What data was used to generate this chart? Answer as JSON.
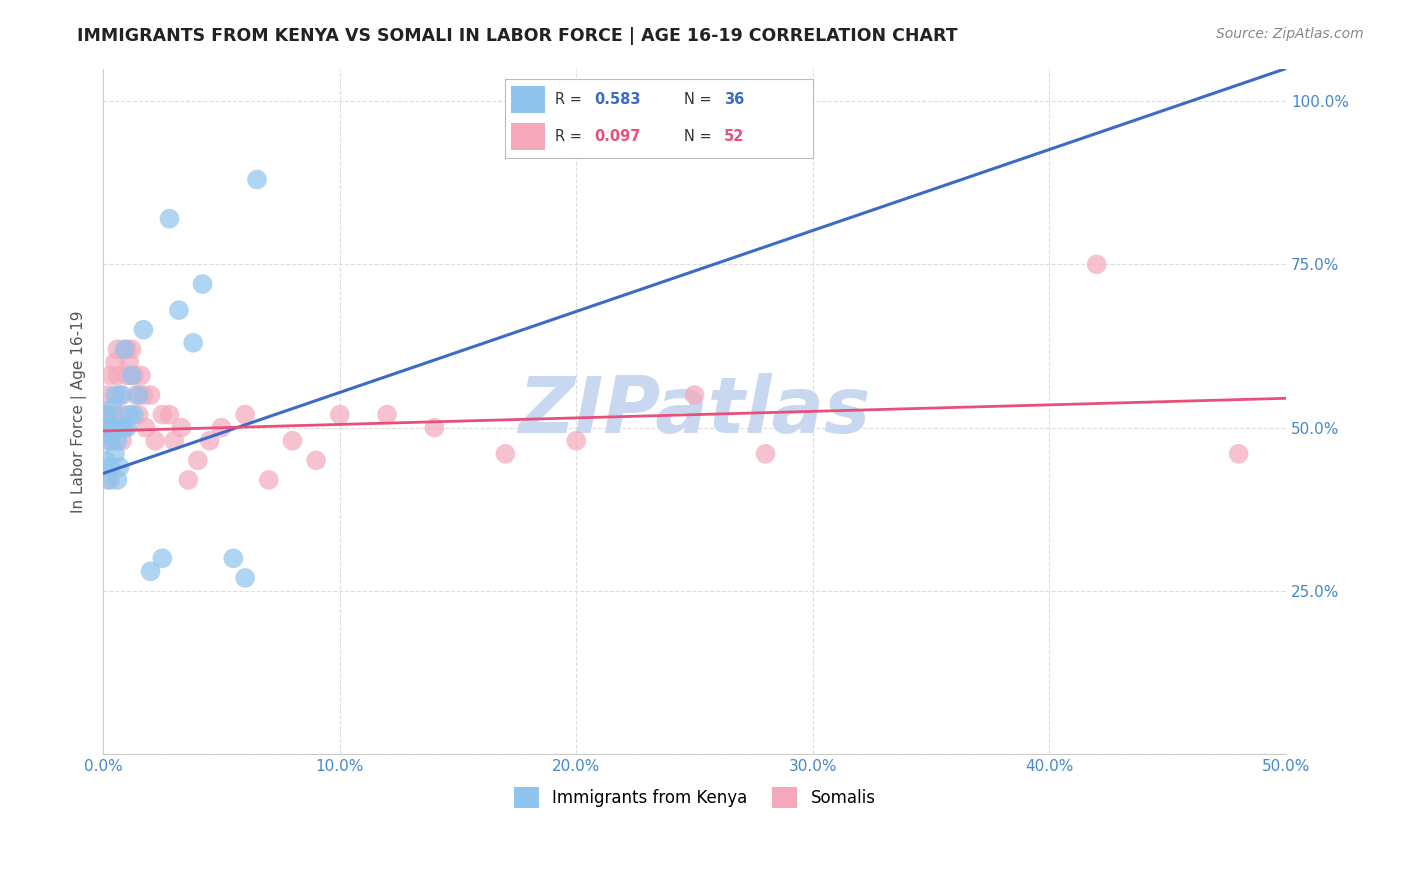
{
  "title": "IMMIGRANTS FROM KENYA VS SOMALI IN LABOR FORCE | AGE 16-19 CORRELATION CHART",
  "source": "Source: ZipAtlas.com",
  "ylabel": "In Labor Force | Age 16-19",
  "xlim": [
    0.0,
    0.5
  ],
  "ylim": [
    0.0,
    1.05
  ],
  "xticks": [
    0.0,
    0.1,
    0.2,
    0.3,
    0.4,
    0.5
  ],
  "xticklabels": [
    "0.0%",
    "10.0%",
    "20.0%",
    "30.0%",
    "40.0%",
    "50.0%"
  ],
  "yticks": [
    0.0,
    0.25,
    0.5,
    0.75,
    1.0
  ],
  "yticklabels_right": [
    "",
    "25.0%",
    "50.0%",
    "75.0%",
    "100.0%"
  ],
  "kenya_color": "#8EC4EE",
  "somali_color": "#F5A8BC",
  "kenya_line_color": "#3A6BC8",
  "somali_line_color": "#E8507A",
  "kenya_r": 0.583,
  "kenya_n": 36,
  "somali_r": 0.097,
  "somali_n": 52,
  "watermark": "ZIPatlas",
  "watermark_color": "#C8D8F0",
  "legend_label_kenya": "Immigrants from Kenya",
  "legend_label_somali": "Somalis",
  "kenya_x": [
    0.001,
    0.001,
    0.002,
    0.002,
    0.002,
    0.003,
    0.003,
    0.003,
    0.004,
    0.004,
    0.005,
    0.005,
    0.005,
    0.006,
    0.006,
    0.006,
    0.007,
    0.007,
    0.008,
    0.008,
    0.009,
    0.01,
    0.011,
    0.012,
    0.013,
    0.015,
    0.017,
    0.02,
    0.025,
    0.028,
    0.032,
    0.038,
    0.042,
    0.055,
    0.06,
    0.065
  ],
  "kenya_y": [
    0.49,
    0.45,
    0.5,
    0.42,
    0.52,
    0.48,
    0.5,
    0.44,
    0.5,
    0.53,
    0.46,
    0.5,
    0.55,
    0.48,
    0.5,
    0.42,
    0.5,
    0.44,
    0.5,
    0.55,
    0.62,
    0.5,
    0.52,
    0.58,
    0.52,
    0.55,
    0.65,
    0.28,
    0.3,
    0.82,
    0.68,
    0.63,
    0.72,
    0.3,
    0.27,
    0.88
  ],
  "somali_x": [
    0.001,
    0.001,
    0.002,
    0.002,
    0.002,
    0.003,
    0.003,
    0.003,
    0.004,
    0.004,
    0.005,
    0.005,
    0.006,
    0.006,
    0.007,
    0.007,
    0.008,
    0.008,
    0.009,
    0.01,
    0.01,
    0.011,
    0.012,
    0.013,
    0.014,
    0.015,
    0.016,
    0.017,
    0.018,
    0.02,
    0.022,
    0.025,
    0.028,
    0.03,
    0.033,
    0.036,
    0.04,
    0.045,
    0.05,
    0.06,
    0.07,
    0.08,
    0.09,
    0.1,
    0.12,
    0.14,
    0.17,
    0.2,
    0.25,
    0.28,
    0.42,
    0.48
  ],
  "somali_y": [
    0.5,
    0.52,
    0.48,
    0.55,
    0.5,
    0.52,
    0.58,
    0.42,
    0.5,
    0.48,
    0.52,
    0.6,
    0.62,
    0.58,
    0.5,
    0.55,
    0.48,
    0.52,
    0.5,
    0.58,
    0.62,
    0.6,
    0.62,
    0.58,
    0.55,
    0.52,
    0.58,
    0.55,
    0.5,
    0.55,
    0.48,
    0.52,
    0.52,
    0.48,
    0.5,
    0.42,
    0.45,
    0.48,
    0.5,
    0.52,
    0.42,
    0.48,
    0.45,
    0.52,
    0.52,
    0.5,
    0.46,
    0.48,
    0.55,
    0.46,
    0.75,
    0.46
  ],
  "kenya_line": [
    [
      0.0,
      0.43
    ],
    [
      0.5,
      1.05
    ]
  ],
  "somali_line": [
    [
      0.0,
      0.495
    ],
    [
      0.5,
      0.545
    ]
  ],
  "background_color": "#FFFFFF",
  "grid_color": "#DDDDDD",
  "tick_color": "#4488CC",
  "title_color": "#222222",
  "ylabel_color": "#555555"
}
